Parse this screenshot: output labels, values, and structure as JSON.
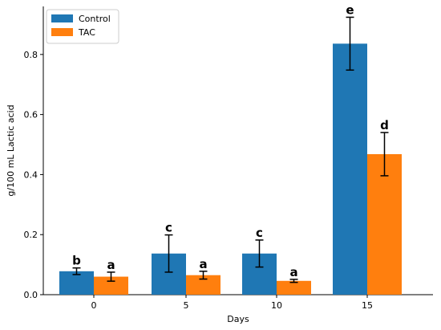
{
  "chart_data": {
    "type": "bar",
    "categories": [
      "0",
      "5",
      "10",
      "15"
    ],
    "series": [
      {
        "name": "Control",
        "color": "#1f77b4",
        "values": [
          0.078,
          0.137,
          0.137,
          0.836
        ],
        "errors": [
          0.011,
          0.062,
          0.045,
          0.088
        ],
        "letters": [
          "b",
          "c",
          "c",
          "e"
        ]
      },
      {
        "name": "TAC",
        "color": "#ff7f0e",
        "values": [
          0.06,
          0.065,
          0.046,
          0.468
        ],
        "errors": [
          0.015,
          0.013,
          0.005,
          0.072
        ],
        "letters": [
          "a",
          "a",
          "a",
          "d"
        ]
      }
    ],
    "xlabel": "Days",
    "ylabel": "g/100 mL Lactic acid",
    "ylim": [
      0,
      0.96
    ],
    "yticks": [
      0.0,
      0.2,
      0.4,
      0.6,
      0.8
    ],
    "ytick_labels": [
      "0.0",
      "0.2",
      "0.4",
      "0.6",
      "0.8"
    ],
    "grid": false,
    "legend_position": "top-left"
  }
}
